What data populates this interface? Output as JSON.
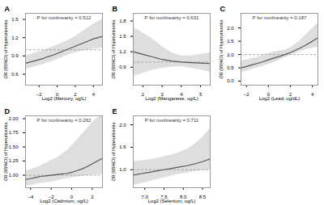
{
  "chart_data": [
    {
      "type": "line",
      "title": "A",
      "annotation": "P for nonlinearity = 0.512",
      "xlabel": "Log2 (Mercury, ug/L)",
      "ylabel": "OR (95%CI) of Hyperuricemia",
      "xlim": [
        -3.5,
        5.0
      ],
      "ylim": [
        0.42,
        1.6
      ],
      "xticks": [
        {
          "value": -2,
          "label": "−2"
        },
        0,
        2,
        4
      ],
      "yticks": [
        0.6,
        0.9,
        1.2,
        1.5
      ],
      "grid": false,
      "x": [
        -3.5,
        -3.0,
        -2.5,
        -2.0,
        -1.5,
        -1.0,
        -0.5,
        0.0,
        0.5,
        1.0,
        1.5,
        2.0,
        2.5,
        3.0,
        3.5,
        4.0,
        4.5,
        5.0
      ],
      "series": [
        {
          "type": "area",
          "color": "#c8c8c8",
          "lower": [
            0.68,
            0.7,
            0.72,
            0.74,
            0.76,
            0.79,
            0.81,
            0.84,
            0.87,
            0.9,
            0.93,
            0.95,
            0.97,
            0.99,
            1.0,
            1.01,
            1.02,
            1.03
          ],
          "upper": [
            0.9,
            0.92,
            0.95,
            0.97,
            0.99,
            1.02,
            1.05,
            1.08,
            1.11,
            1.14,
            1.18,
            1.22,
            1.27,
            1.32,
            1.37,
            1.42,
            1.46,
            1.5
          ]
        },
        {
          "type": "rule",
          "color": "#999999",
          "line_style": "dashed",
          "value": 1.0
        },
        {
          "type": "line",
          "color": "#555555",
          "line_style": "solid",
          "values": [
            0.78,
            0.8,
            0.82,
            0.84,
            0.86,
            0.89,
            0.91,
            0.94,
            0.97,
            1.0,
            1.03,
            1.06,
            1.09,
            1.12,
            1.15,
            1.18,
            1.2,
            1.22
          ]
        }
      ]
    },
    {
      "type": "line",
      "title": "B",
      "annotation": "P for nonlinearity = 0.631",
      "xlabel": "Log2 (Manganese, ug/L)",
      "ylabel": "OR (95%CI) of Hyperuricemia",
      "xlim": [
        1.5,
        5.5
      ],
      "ylim": [
        0.55,
        1.95
      ],
      "xticks": [
        2,
        3,
        4,
        5
      ],
      "yticks": [
        0.9,
        1.2,
        1.5,
        1.8
      ],
      "grid": false,
      "x": [
        1.5,
        2.0,
        2.5,
        3.0,
        3.5,
        4.0,
        4.5,
        5.0,
        5.5
      ],
      "series": [
        {
          "type": "area",
          "color": "#c8c8c8",
          "lower": [
            0.72,
            0.78,
            0.84,
            0.88,
            0.9,
            0.91,
            0.88,
            0.85,
            0.8
          ],
          "upper": [
            1.68,
            1.57,
            1.45,
            1.3,
            1.18,
            1.12,
            1.12,
            1.15,
            1.18
          ]
        },
        {
          "type": "rule",
          "color": "#999999",
          "line_style": "dashed",
          "value": 1.0
        },
        {
          "type": "line",
          "color": "#555555",
          "line_style": "solid",
          "values": [
            1.2,
            1.15,
            1.1,
            1.05,
            1.02,
            1.0,
            0.99,
            0.98,
            0.97
          ]
        }
      ]
    },
    {
      "type": "line",
      "title": "C",
      "annotation": "P for nonlinearity = 0.187",
      "xlabel": "Log2 (Lead, ug/dL)",
      "ylabel": "OR (95%CI) of Hyperuricemia",
      "xlim": [
        -2.5,
        4.5
      ],
      "ylim": [
        -0.15,
        2.55
      ],
      "xticks": [
        {
          "value": -2,
          "label": "−2"
        },
        0,
        2,
        4
      ],
      "yticks": [
        {
          "value": 0,
          "label": "0.0"
        },
        0.5,
        {
          "value": 1.0,
          "label": "1.0"
        },
        1.5,
        {
          "value": 2.0,
          "label": "2.0"
        }
      ],
      "grid": false,
      "x": [
        -2.5,
        -2.0,
        -1.5,
        -1.0,
        -0.5,
        0.0,
        0.5,
        1.0,
        1.5,
        2.0,
        2.5,
        3.0,
        3.5,
        4.0,
        4.5
      ],
      "series": [
        {
          "type": "area",
          "color": "#c8c8c8",
          "lower": [
            0.33,
            0.38,
            0.44,
            0.5,
            0.56,
            0.63,
            0.71,
            0.79,
            0.88,
            0.97,
            1.05,
            1.13,
            1.19,
            1.24,
            1.28
          ],
          "upper": [
            0.75,
            0.8,
            0.85,
            0.9,
            0.97,
            1.04,
            1.1,
            1.13,
            1.16,
            1.26,
            1.4,
            1.58,
            1.78,
            1.98,
            2.18
          ]
        },
        {
          "type": "rule",
          "color": "#999999",
          "line_style": "dashed",
          "value": 1.0
        },
        {
          "type": "line",
          "color": "#555555",
          "line_style": "solid",
          "values": [
            0.5,
            0.55,
            0.61,
            0.67,
            0.73,
            0.8,
            0.87,
            0.93,
            1.0,
            1.08,
            1.17,
            1.27,
            1.38,
            1.5,
            1.63
          ]
        }
      ]
    },
    {
      "type": "line",
      "title": "D",
      "annotation": "P for nonlinearity = 0.262",
      "xlabel": "Log2 (Cadmium, ug/L)",
      "ylabel": "OR (95%CI) of Hyperuricemia",
      "xlim": [
        -4.5,
        3.0
      ],
      "ylim": [
        0.78,
        2.05
      ],
      "xticks": [
        {
          "value": -4,
          "label": "−4"
        },
        {
          "value": -2,
          "label": "−2"
        },
        0,
        2
      ],
      "yticks": [
        {
          "value": 1.0,
          "label": "1.00"
        },
        {
          "value": 1.25,
          "label": "1.25"
        },
        {
          "value": 1.5,
          "label": "1.50"
        },
        {
          "value": 1.75,
          "label": "1.75"
        },
        {
          "value": 2.0,
          "label": "2.00"
        }
      ],
      "grid": false,
      "x": [
        -4.5,
        -4.0,
        -3.5,
        -3.0,
        -2.5,
        -2.0,
        -1.5,
        -1.0,
        -0.5,
        0.0,
        0.5,
        1.0,
        1.5,
        2.0,
        2.5,
        3.0
      ],
      "series": [
        {
          "type": "area",
          "color": "#c8c8c8",
          "lower": [
            0.8,
            0.82,
            0.84,
            0.86,
            0.87,
            0.88,
            0.9,
            0.92,
            0.94,
            0.95,
            0.97,
            0.98,
            0.99,
            1.0,
            1.01,
            1.02
          ],
          "upper": [
            1.08,
            1.1,
            1.13,
            1.17,
            1.21,
            1.26,
            1.3,
            1.36,
            1.43,
            1.52,
            1.62,
            1.72,
            1.82,
            1.93,
            2.01,
            2.05
          ]
        },
        {
          "type": "rule",
          "color": "#999999",
          "line_style": "dashed",
          "value": 1.0
        },
        {
          "type": "line",
          "color": "#555555",
          "line_style": "solid",
          "values": [
            0.92,
            0.94,
            0.96,
            0.98,
            0.99,
            1.0,
            1.01,
            1.02,
            1.03,
            1.05,
            1.08,
            1.11,
            1.15,
            1.2,
            1.25,
            1.3
          ]
        }
      ]
    },
    {
      "type": "line",
      "title": "E",
      "annotation": "P for nonlinearity = 0.711",
      "xlabel": "Log2 (Selenium, ug/L)",
      "ylabel": "OR (95%CI) of Hyperuricemia",
      "xlim": [
        6.7,
        8.7
      ],
      "ylim": [
        0.6,
        2.2
      ],
      "xticks": [
        {
          "value": 7.0,
          "label": "7.0"
        },
        7.5,
        {
          "value": 8.0,
          "label": "8.0"
        },
        8.5
      ],
      "yticks": [
        {
          "value": 1.0,
          "label": "1.0"
        },
        1.5,
        {
          "value": 2.0,
          "label": "2.0"
        }
      ],
      "grid": false,
      "x": [
        6.7,
        6.9,
        7.1,
        7.3,
        7.5,
        7.7,
        7.9,
        8.1,
        8.3,
        8.5,
        8.7
      ],
      "series": [
        {
          "type": "area",
          "color": "#c8c8c8",
          "lower": [
            0.65,
            0.69,
            0.73,
            0.78,
            0.82,
            0.86,
            0.9,
            0.93,
            0.96,
            0.98,
            0.99
          ],
          "upper": [
            1.18,
            1.2,
            1.22,
            1.25,
            1.29,
            1.33,
            1.38,
            1.46,
            1.57,
            1.72,
            1.92
          ]
        },
        {
          "type": "rule",
          "color": "#999999",
          "line_style": "dashed",
          "value": 1.0
        },
        {
          "type": "line",
          "color": "#555555",
          "line_style": "solid",
          "values": [
            0.88,
            0.91,
            0.94,
            0.97,
            1.0,
            1.03,
            1.06,
            1.09,
            1.13,
            1.18,
            1.24
          ]
        }
      ]
    }
  ]
}
